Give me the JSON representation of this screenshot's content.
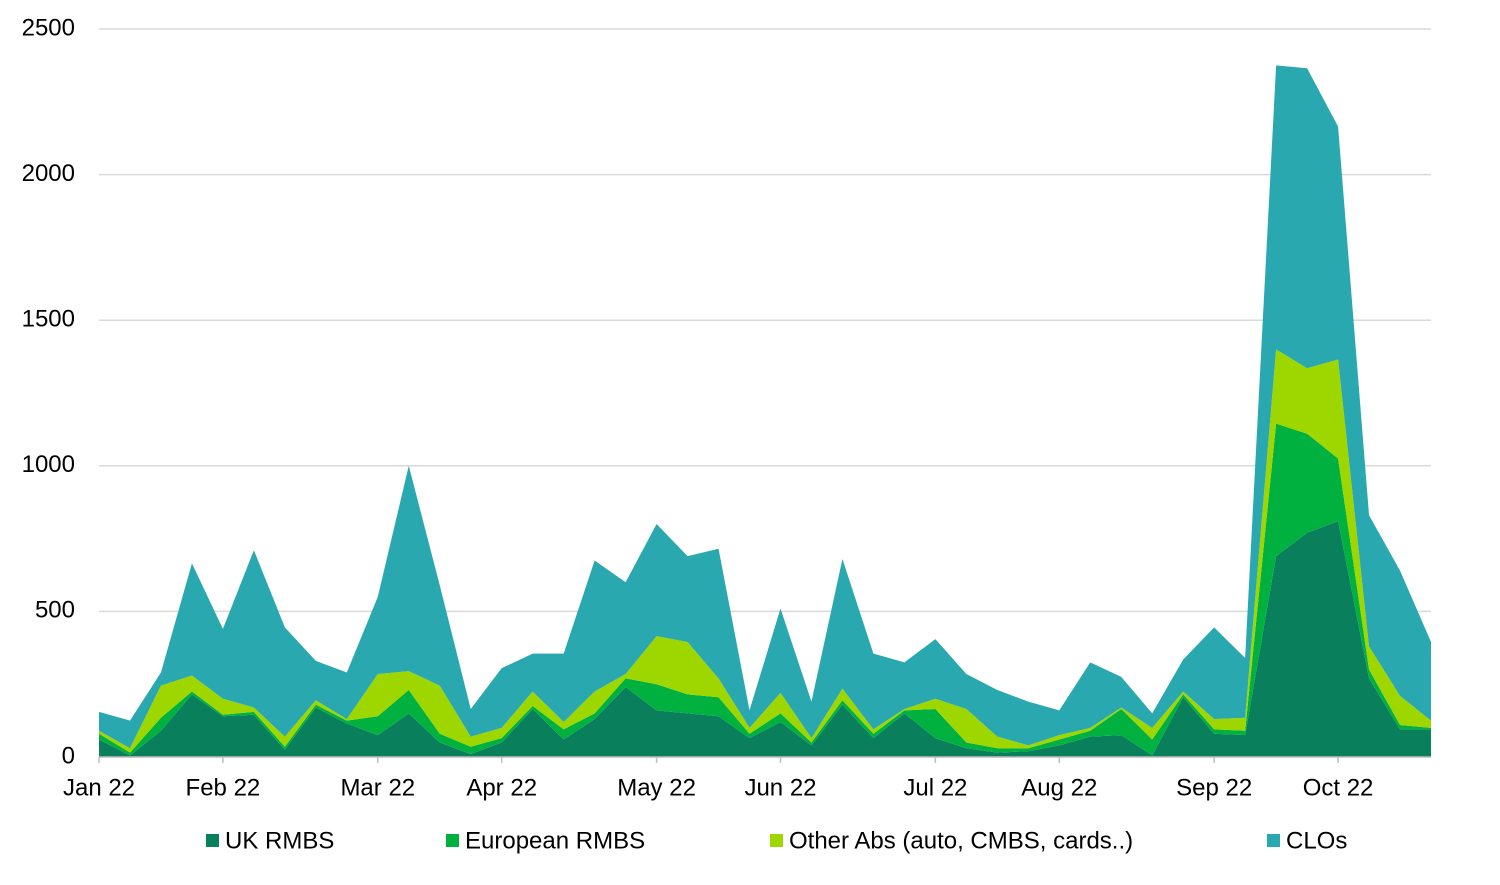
{
  "chart_data": {
    "type": "stacked_area",
    "categories": [
      "Jan 22",
      null,
      null,
      null,
      "Feb 22",
      null,
      null,
      null,
      null,
      "Mar 22",
      null,
      null,
      null,
      "Apr 22",
      null,
      null,
      null,
      null,
      "May 22",
      null,
      null,
      null,
      "Jun 22",
      null,
      null,
      null,
      null,
      "Jul 22",
      null,
      null,
      null,
      "Aug 22",
      null,
      null,
      null,
      null,
      "Sep 22",
      null,
      null,
      null,
      "Oct 22",
      null,
      null,
      null
    ],
    "series": [
      {
        "name": "UK RMBS",
        "color": "#0a7f5c",
        "values": [
          60,
          5,
          90,
          215,
          140,
          145,
          25,
          170,
          115,
          75,
          150,
          50,
          10,
          50,
          165,
          60,
          130,
          240,
          160,
          150,
          140,
          65,
          120,
          40,
          180,
          65,
          150,
          65,
          30,
          15,
          20,
          40,
          70,
          75,
          5,
          205,
          80,
          75,
          690,
          770,
          810,
          270,
          95,
          95
        ]
      },
      {
        "name": "European RMBS",
        "color": "#00b140",
        "values": [
          20,
          10,
          45,
          10,
          5,
          10,
          10,
          10,
          10,
          65,
          80,
          30,
          25,
          15,
          10,
          35,
          20,
          30,
          90,
          65,
          65,
          15,
          30,
          10,
          15,
          15,
          10,
          100,
          20,
          15,
          10,
          20,
          20,
          90,
          55,
          10,
          15,
          15,
          455,
          340,
          215,
          30,
          15,
          5
        ]
      },
      {
        "name": "Other Abs (auto, CMBS, cards..)",
        "color": "#9ed600",
        "values": [
          10,
          15,
          110,
          55,
          55,
          15,
          35,
          15,
          5,
          145,
          65,
          165,
          35,
          35,
          50,
          25,
          75,
          15,
          165,
          180,
          65,
          20,
          70,
          15,
          40,
          15,
          5,
          35,
          115,
          40,
          10,
          15,
          10,
          5,
          40,
          10,
          35,
          45,
          255,
          225,
          340,
          80,
          100,
          25
        ]
      },
      {
        "name": "CLOs",
        "color": "#2aa8b0",
        "values": [
          65,
          95,
          45,
          385,
          240,
          540,
          375,
          135,
          160,
          265,
          705,
          345,
          95,
          205,
          130,
          235,
          450,
          315,
          385,
          295,
          445,
          60,
          290,
          125,
          445,
          260,
          160,
          205,
          120,
          160,
          150,
          85,
          225,
          105,
          50,
          110,
          315,
          205,
          975,
          1030,
          800,
          450,
          430,
          270
        ]
      }
    ],
    "ylim": [
      0,
      2500
    ],
    "yticks": [
      0,
      500,
      1000,
      1500,
      2000,
      2500
    ],
    "grid": true
  }
}
